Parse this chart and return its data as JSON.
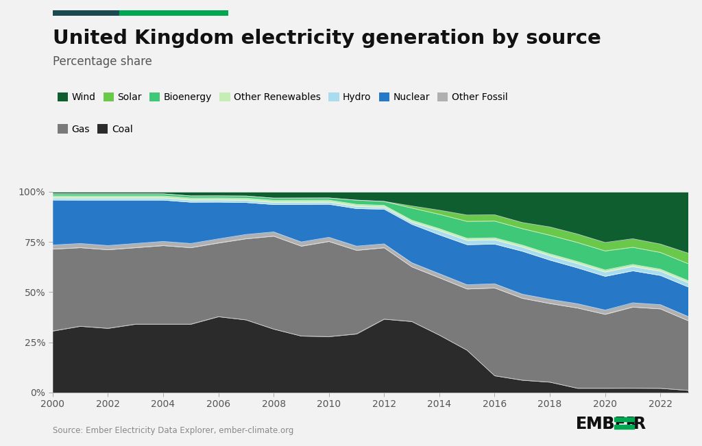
{
  "title": "United Kingdom electricity generation by source",
  "subtitle": "Percentage share",
  "source_text": "Source: Ember Electricity Data Explorer, ember-climate.org",
  "years": [
    2000,
    2001,
    2002,
    2003,
    2004,
    2005,
    2006,
    2007,
    2008,
    2009,
    2010,
    2011,
    2012,
    2013,
    2014,
    2015,
    2016,
    2017,
    2018,
    2019,
    2020,
    2021,
    2022,
    2023
  ],
  "series": {
    "Coal": [
      30,
      32,
      31,
      33,
      33,
      33,
      37,
      34,
      30,
      27,
      27,
      28,
      38,
      35,
      28,
      20,
      8,
      6,
      5,
      2,
      2,
      2,
      2,
      1
    ],
    "Gas": [
      40,
      38,
      38,
      37,
      38,
      37,
      36,
      38,
      44,
      43,
      46,
      40,
      37,
      27,
      28,
      29,
      42,
      40,
      38,
      38,
      35,
      38,
      38,
      33
    ],
    "Other Fossil": [
      2,
      2,
      2,
      2,
      2,
      2,
      2,
      2,
      2,
      2,
      2,
      2,
      2,
      2,
      2,
      2,
      2,
      2,
      2,
      2,
      2,
      2,
      2,
      2
    ],
    "Nuclear": [
      22,
      21,
      22,
      21,
      20,
      20,
      18,
      15,
      13,
      18,
      16,
      18,
      18,
      19,
      19,
      19,
      19,
      21,
      19,
      17,
      16,
      15,
      14,
      14
    ],
    "Hydro": [
      1,
      1,
      1,
      1,
      1,
      1,
      1,
      1,
      1,
      1,
      1,
      1,
      1,
      1,
      2,
      2,
      2,
      2,
      2,
      2,
      2,
      2,
      2,
      2
    ],
    "Other Renewables": [
      1,
      1,
      1,
      1,
      1,
      1,
      1,
      1,
      1,
      1,
      1,
      1,
      1,
      1,
      1,
      1,
      1,
      1,
      1,
      1,
      1,
      1,
      1,
      1
    ],
    "Bioenergy": [
      1,
      1,
      1,
      1,
      1,
      1,
      1,
      1,
      1,
      1,
      1,
      2,
      2,
      6,
      7,
      8,
      8,
      8,
      9,
      9,
      9,
      8,
      8,
      8
    ],
    "Solar": [
      0,
      0,
      0,
      0,
      0,
      0,
      0,
      0,
      0,
      0,
      0,
      0,
      0,
      1,
      2,
      3,
      3,
      3,
      4,
      4,
      4,
      4,
      4,
      5
    ],
    "Wind": [
      1,
      1,
      1,
      1,
      1,
      2,
      2,
      2,
      3,
      3,
      3,
      4,
      5,
      7,
      9,
      11,
      11,
      15,
      17,
      20,
      24,
      22,
      25,
      29
    ]
  },
  "colors": {
    "Coal": "#2b2b2b",
    "Gas": "#7a7a7a",
    "Other Fossil": "#b0b0b0",
    "Nuclear": "#2878c8",
    "Hydro": "#aadcf0",
    "Other Renewables": "#c5edb5",
    "Bioenergy": "#3ec878",
    "Solar": "#6ac84a",
    "Wind": "#0e5e30"
  },
  "legend_order": [
    "Wind",
    "Solar",
    "Bioenergy",
    "Other Renewables",
    "Hydro",
    "Nuclear",
    "Other Fossil",
    "Gas",
    "Coal"
  ],
  "stack_order": [
    "Coal",
    "Gas",
    "Other Fossil",
    "Nuclear",
    "Hydro",
    "Other Renewables",
    "Bioenergy",
    "Solar",
    "Wind"
  ],
  "background_color": "#f2f2f2",
  "plot_bg_color": "#f2f2f2",
  "title_fontsize": 21,
  "subtitle_fontsize": 12,
  "axis_fontsize": 10,
  "top_bar_color": "#1a5c40",
  "top_bar_color2": "#00a651"
}
